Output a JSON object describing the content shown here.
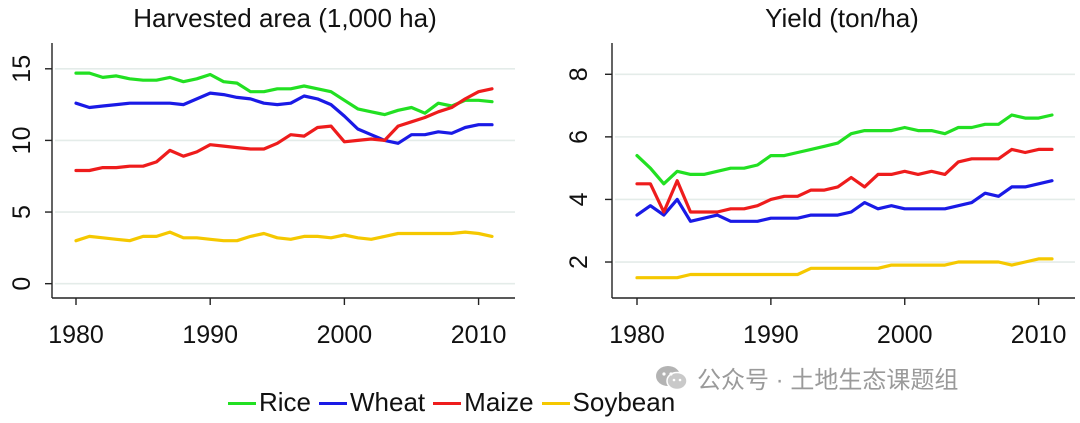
{
  "colors": {
    "Rice": "#22e022",
    "Wheat": "#1a1ae6",
    "Maize": "#ee1c1c",
    "Soybean": "#f5c800",
    "grid": "#e4ece9",
    "axis": "#222222"
  },
  "legend": {
    "items": [
      "Rice",
      "Wheat",
      "Maize",
      "Soybean"
    ]
  },
  "watermark": {
    "text": "公众号 · 土地生态课题组",
    "icon": "wechat-icon"
  },
  "chart_data": [
    {
      "type": "line",
      "title": "Harvested area (1,000 ha)",
      "xlabel": "",
      "ylabel": "",
      "xlim": [
        1980,
        2011
      ],
      "ylim": [
        0,
        15
      ],
      "xticks": [
        1980,
        1990,
        2000,
        2010
      ],
      "yticks": [
        0,
        5,
        10,
        15
      ],
      "grid": true,
      "x": [
        1980,
        1981,
        1982,
        1983,
        1984,
        1985,
        1986,
        1987,
        1988,
        1989,
        1990,
        1991,
        1992,
        1993,
        1994,
        1995,
        1996,
        1997,
        1998,
        1999,
        2000,
        2001,
        2002,
        2003,
        2004,
        2005,
        2006,
        2007,
        2008,
        2009,
        2010,
        2011
      ],
      "series": [
        {
          "name": "Rice",
          "values": [
            14.7,
            14.7,
            14.4,
            14.5,
            14.3,
            14.2,
            14.2,
            14.4,
            14.1,
            14.3,
            14.6,
            14.1,
            14.0,
            13.4,
            13.4,
            13.6,
            13.6,
            13.8,
            13.6,
            13.4,
            12.8,
            12.2,
            12.0,
            11.8,
            12.1,
            12.3,
            11.9,
            12.6,
            12.4,
            12.8,
            12.8,
            12.7
          ]
        },
        {
          "name": "Wheat",
          "values": [
            12.6,
            12.3,
            12.4,
            12.5,
            12.6,
            12.6,
            12.6,
            12.6,
            12.5,
            12.9,
            13.3,
            13.2,
            13.0,
            12.9,
            12.6,
            12.5,
            12.6,
            13.1,
            12.9,
            12.5,
            11.7,
            10.8,
            10.4,
            10.0,
            9.8,
            10.4,
            10.4,
            10.6,
            10.5,
            10.9,
            11.1,
            11.1
          ]
        },
        {
          "name": "Maize",
          "values": [
            7.9,
            7.9,
            8.1,
            8.1,
            8.2,
            8.2,
            8.5,
            9.3,
            8.9,
            9.2,
            9.7,
            9.6,
            9.5,
            9.4,
            9.4,
            9.8,
            10.4,
            10.3,
            10.9,
            11.0,
            9.9,
            10.0,
            10.1,
            10.0,
            11.0,
            11.3,
            11.6,
            12.0,
            12.3,
            12.9,
            13.4,
            13.6
          ]
        },
        {
          "name": "Soybean",
          "values": [
            3.0,
            3.3,
            3.2,
            3.1,
            3.0,
            3.3,
            3.3,
            3.6,
            3.2,
            3.2,
            3.1,
            3.0,
            3.0,
            3.3,
            3.5,
            3.2,
            3.1,
            3.3,
            3.3,
            3.2,
            3.4,
            3.2,
            3.1,
            3.3,
            3.5,
            3.5,
            3.5,
            3.5,
            3.5,
            3.6,
            3.5,
            3.3
          ]
        }
      ]
    },
    {
      "type": "line",
      "title": "Yield (ton/ha)",
      "xlabel": "",
      "ylabel": "",
      "xlim": [
        1980,
        2011
      ],
      "ylim": [
        1,
        8.5
      ],
      "xticks": [
        1980,
        1990,
        2000,
        2010
      ],
      "yticks": [
        2,
        4,
        6,
        8
      ],
      "grid": true,
      "x": [
        1980,
        1981,
        1982,
        1983,
        1984,
        1985,
        1986,
        1987,
        1988,
        1989,
        1990,
        1991,
        1992,
        1993,
        1994,
        1995,
        1996,
        1997,
        1998,
        1999,
        2000,
        2001,
        2002,
        2003,
        2004,
        2005,
        2006,
        2007,
        2008,
        2009,
        2010,
        2011
      ],
      "series": [
        {
          "name": "Rice",
          "values": [
            5.4,
            5.0,
            4.5,
            4.9,
            4.8,
            4.8,
            4.9,
            5.0,
            5.0,
            5.1,
            5.4,
            5.4,
            5.5,
            5.6,
            5.7,
            5.8,
            6.1,
            6.2,
            6.2,
            6.2,
            6.3,
            6.2,
            6.2,
            6.1,
            6.3,
            6.3,
            6.4,
            6.4,
            6.7,
            6.6,
            6.6,
            6.7
          ]
        },
        {
          "name": "Wheat",
          "values": [
            3.5,
            3.8,
            3.5,
            4.0,
            3.3,
            3.4,
            3.5,
            3.3,
            3.3,
            3.3,
            3.4,
            3.4,
            3.4,
            3.5,
            3.5,
            3.5,
            3.6,
            3.9,
            3.7,
            3.8,
            3.7,
            3.7,
            3.7,
            3.7,
            3.8,
            3.9,
            4.2,
            4.1,
            4.4,
            4.4,
            4.5,
            4.6
          ]
        },
        {
          "name": "Maize",
          "values": [
            4.5,
            4.5,
            3.6,
            4.6,
            3.6,
            3.6,
            3.6,
            3.7,
            3.7,
            3.8,
            4.0,
            4.1,
            4.1,
            4.3,
            4.3,
            4.4,
            4.7,
            4.4,
            4.8,
            4.8,
            4.9,
            4.8,
            4.9,
            4.8,
            5.2,
            5.3,
            5.3,
            5.3,
            5.6,
            5.5,
            5.6,
            5.6
          ]
        },
        {
          "name": "Soybean",
          "values": [
            1.5,
            1.5,
            1.5,
            1.5,
            1.6,
            1.6,
            1.6,
            1.6,
            1.6,
            1.6,
            1.6,
            1.6,
            1.6,
            1.8,
            1.8,
            1.8,
            1.8,
            1.8,
            1.8,
            1.9,
            1.9,
            1.9,
            1.9,
            1.9,
            2.0,
            2.0,
            2.0,
            2.0,
            1.9,
            2.0,
            2.1,
            2.1
          ]
        }
      ]
    }
  ]
}
